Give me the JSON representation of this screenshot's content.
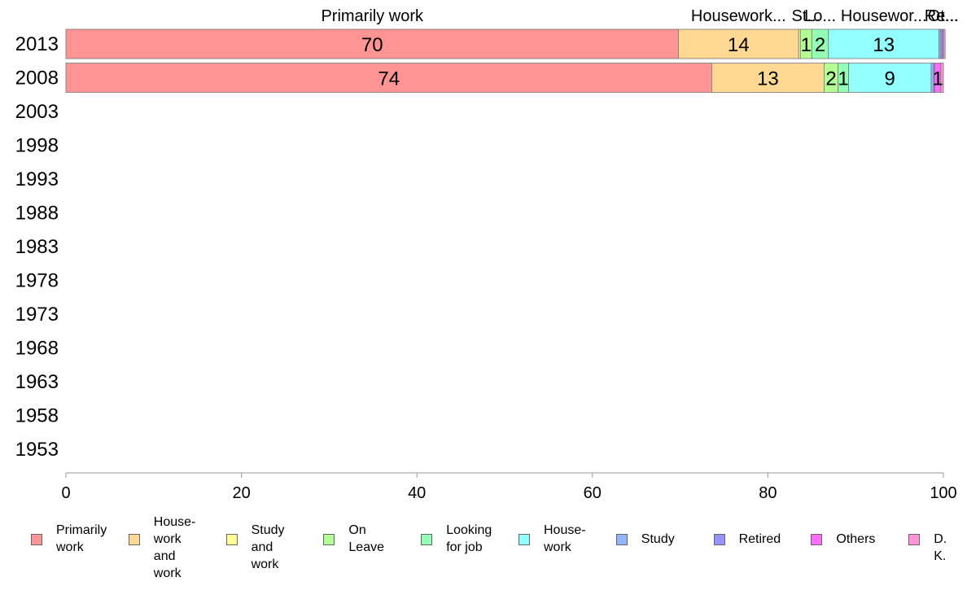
{
  "chart_data": {
    "type": "bar",
    "orientation": "horizontal",
    "stacked": true,
    "categories": [
      "2013",
      "2008",
      "2003",
      "1998",
      "1993",
      "1988",
      "1983",
      "1978",
      "1973",
      "1968",
      "1963",
      "1958",
      "1953"
    ],
    "series": [
      {
        "name": "Primarily work",
        "legend": "Primarily\nwork",
        "color": "#FF9494",
        "values": [
          69.8,
          73.6,
          null,
          null,
          null,
          null,
          null,
          null,
          null,
          null,
          null,
          null,
          null
        ]
      },
      {
        "name": "Housework and work",
        "legend": "House-\nwork\nand work",
        "color": "#FFD994",
        "values": [
          13.7,
          12.8,
          null,
          null,
          null,
          null,
          null,
          null,
          null,
          null,
          null,
          null,
          null
        ]
      },
      {
        "name": "Study and work",
        "legend": "Study\nand work",
        "color": "#FFFF94",
        "values": [
          0.2,
          0.0,
          null,
          null,
          null,
          null,
          null,
          null,
          null,
          null,
          null,
          null,
          null
        ]
      },
      {
        "name": "On Leave",
        "legend": "On\nLeave",
        "color": "#B4FF94",
        "values": [
          1.3,
          1.6,
          null,
          null,
          null,
          null,
          null,
          null,
          null,
          null,
          null,
          null,
          null
        ]
      },
      {
        "name": "Looking for job",
        "legend": "Looking\nfor job",
        "color": "#94FFB4",
        "values": [
          1.9,
          1.2,
          null,
          null,
          null,
          null,
          null,
          null,
          null,
          null,
          null,
          null,
          null
        ]
      },
      {
        "name": "Housework",
        "legend": "House-\nwork",
        "color": "#94FFFF",
        "values": [
          12.6,
          9.4,
          null,
          null,
          null,
          null,
          null,
          null,
          null,
          null,
          null,
          null,
          null
        ]
      },
      {
        "name": "Study",
        "legend": "Study",
        "color": "#94B4FF",
        "values": [
          0.2,
          0.3,
          null,
          null,
          null,
          null,
          null,
          null,
          null,
          null,
          null,
          null,
          null
        ]
      },
      {
        "name": "Retired",
        "legend": "Retired",
        "color": "#9494FF",
        "values": [
          0.2,
          0.1,
          null,
          null,
          null,
          null,
          null,
          null,
          null,
          null,
          null,
          null,
          null
        ]
      },
      {
        "name": "Others",
        "legend": "Others",
        "color": "#FF6BFF",
        "values": [
          0.1,
          0.7,
          null,
          null,
          null,
          null,
          null,
          null,
          null,
          null,
          null,
          null,
          null
        ]
      },
      {
        "name": "D. K.",
        "legend": "D. K.",
        "color": "#FF94D9",
        "values": [
          0.2,
          0.3,
          null,
          null,
          null,
          null,
          null,
          null,
          null,
          null,
          null,
          null,
          null
        ]
      }
    ],
    "segment_labels": [
      {
        "category": "2013",
        "series": "Primarily work",
        "text": "70"
      },
      {
        "category": "2013",
        "series": "Housework and work",
        "text": "14"
      },
      {
        "category": "2013",
        "series": "On Leave",
        "text": "1"
      },
      {
        "category": "2013",
        "series": "Looking for job",
        "text": "2"
      },
      {
        "category": "2013",
        "series": "Housework",
        "text": "13"
      },
      {
        "category": "2008",
        "series": "Primarily work",
        "text": "74"
      },
      {
        "category": "2008",
        "series": "Housework and work",
        "text": "13"
      },
      {
        "category": "2008",
        "series": "On Leave",
        "text": "2"
      },
      {
        "category": "2008",
        "series": "Looking for job",
        "text": "1"
      },
      {
        "category": "2008",
        "series": "Housework",
        "text": "9"
      },
      {
        "category": "2008",
        "series": "Others",
        "text": "1"
      }
    ],
    "top_labels": [
      {
        "series": "Primarily work",
        "text": "Primarily work"
      },
      {
        "series": "Housework and work",
        "text": "Housework..."
      },
      {
        "series": "On Leave",
        "text": "St..."
      },
      {
        "series": "Looking for job",
        "text": "Lo..."
      },
      {
        "series": "Housework",
        "text": "Housewor..."
      },
      {
        "series": "Retired",
        "text": "Re..."
      },
      {
        "series": "Others",
        "text": "Ot..."
      }
    ],
    "xlim": [
      0,
      100
    ],
    "xticks": [
      "0",
      "20",
      "40",
      "60",
      "80",
      "100"
    ],
    "legend_position": "bottom",
    "grid": false
  }
}
